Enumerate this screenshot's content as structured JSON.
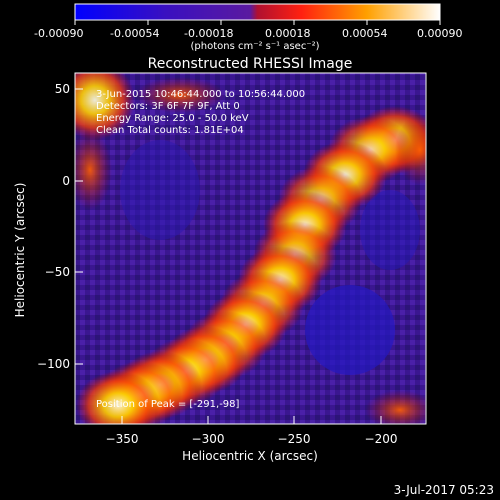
{
  "colorbar": {
    "ticks": [
      "-0.00090",
      "-0.00054",
      "-0.00018",
      "0.00018",
      "0.00054",
      "0.00090"
    ],
    "units": "(photons cm⁻² s⁻¹ asec⁻²)"
  },
  "title": "Reconstructed RHESSI Image",
  "info": {
    "time_range": "3-Jun-2015 10:46:44.000 to 10:56:44.000",
    "detectors": "Detectors: 3F 6F 7F 9F, Att 0",
    "energy": "Energy Range: 25.0 - 50.0 keV",
    "method": "Clean     Total counts: 1.81E+04"
  },
  "peak_label": "Position of Peak = [-291,-98]",
  "axes": {
    "x_label": "Heliocentric X (arcsec)",
    "y_label": "Heliocentric Y (arcsec)",
    "x_ticks": [
      "−350",
      "−300",
      "−250",
      "−200"
    ],
    "y_ticks": [
      "50",
      "0",
      "−50",
      "−100"
    ]
  },
  "footer_date": "3-Jul-2017 05:23",
  "colors": {
    "background": "#000000",
    "text": "#ffffff",
    "negative": "#2a18c8",
    "positive": "#ffffff"
  }
}
